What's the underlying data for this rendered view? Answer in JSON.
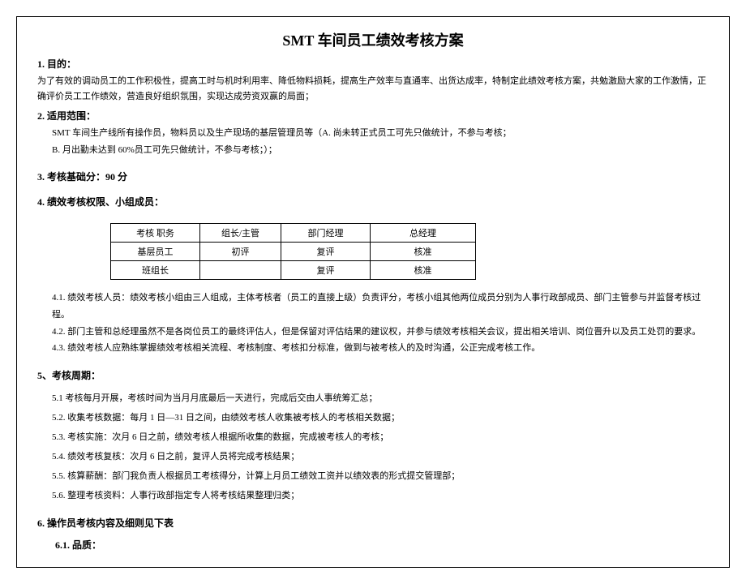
{
  "title": "SMT 车间员工绩效考核方案",
  "section1": {
    "heading": "1. 目的：",
    "body": "为了有效的调动员工的工作积极性，提高工时与机时利用率、降低物料损耗，提高生产效率与直通率、出货达成率，特制定此绩效考核方案，共勉激励大家的工作激情，正确评价员工工作绩效，营造良好组织氛围，实现达成劳资双赢的局面；"
  },
  "section2": {
    "heading": "2. 适用范围：",
    "body1": "SMT 车间生产线所有操作员，物料员以及生产现场的基层管理员等（A. 尚未转正式员工可先只做统计，不参与考核；",
    "body2": "B. 月出勤未达到 60%员工可先只做统计，不参与考核；）；"
  },
  "section3": {
    "heading": "3. 考核基础分：90 分"
  },
  "section4": {
    "heading": "4. 绩效考核权限、小组成员：",
    "table": {
      "rows": [
        [
          "考核 职务",
          "组长/主管",
          "部门经理",
          "总经理"
        ],
        [
          "基层员工",
          "初评",
          "复评",
          "核准"
        ],
        [
          "班组长",
          "",
          "复评",
          "核准"
        ]
      ]
    },
    "item1": "4.1. 绩效考核人员：绩效考核小组由三人组成，主体考核者（员工的直接上级）负责评分，考核小组其他两位成员分别为人事行政部成员、部门主管参与并监督考核过程。",
    "item2": "4.2. 部门主管和总经理虽然不是各岗位员工的最终评估人，但是保留对评估结果的建议权，并参与绩效考核相关会议，提出相关培训、岗位晋升以及员工处罚的要求。",
    "item3": "4.3. 绩效考核人应熟练掌握绩效考核相关流程、考核制度、考核扣分标准，做到与被考核人的及时沟通，公正完成考核工作。"
  },
  "section5": {
    "heading": "5、考核周期：",
    "items": [
      "5.1 考核每月开展，考核时间为当月月底最后一天进行，完成后交由人事统筹汇总；",
      "5.2. 收集考核数据：每月 1 日—31 日之间，由绩效考核人收集被考核人的考核相关数据；",
      "5.3. 考核实施：次月 6 日之前，绩效考核人根据所收集的数据，完成被考核人的考核；",
      "5.4. 绩效考核复核：次月 6 日之前，复评人员将完成考核结果；",
      "5.5. 核算薪酬：部门我负责人根据员工考核得分，计算上月员工绩效工资并以绩效表的形式提交管理部；",
      "5.6. 整理考核资料：人事行政部指定专人将考核结果整理归类；"
    ]
  },
  "section6": {
    "heading": "6. 操作员考核内容及细则见下表",
    "sub": "6.1. 品质："
  }
}
